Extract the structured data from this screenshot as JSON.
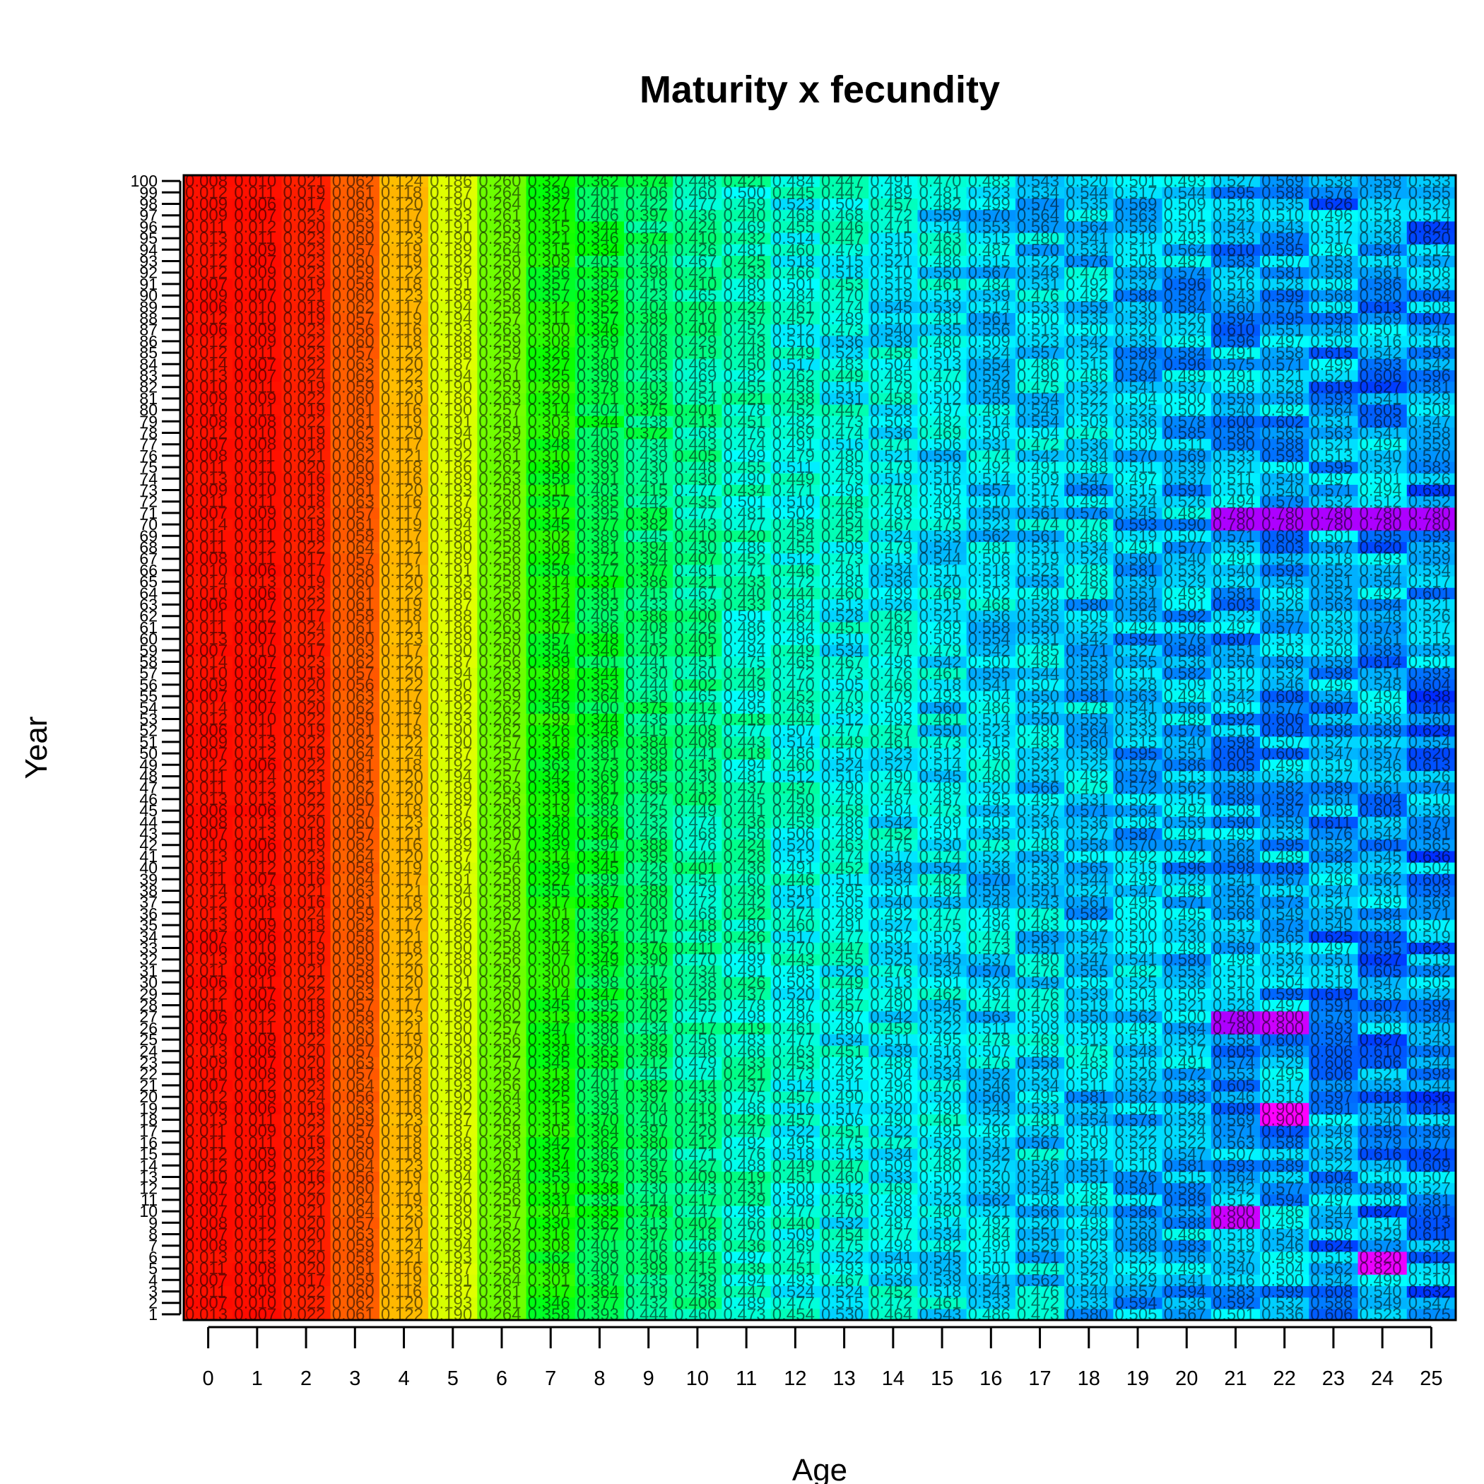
{
  "chart_data": {
    "type": "heatmap",
    "title": "Maturity x fecundity",
    "xlabel": "Age",
    "ylabel": "Year",
    "x_ticks": [
      0,
      1,
      2,
      3,
      4,
      5,
      6,
      7,
      8,
      9,
      10,
      11,
      12,
      13,
      14,
      15,
      16,
      17,
      18,
      19,
      20,
      21,
      22,
      23,
      24,
      25
    ],
    "xlim": [
      -0.5,
      25.5
    ],
    "ylim": [
      0.5,
      100.5
    ],
    "y_range": [
      1,
      100
    ],
    "grid": false,
    "legend": "none",
    "colormap": "rainbow (red = low, through orange, yellow, green, cyan, to blue/magenta = high)",
    "age_mean_levels": [
      0.01,
      0.01,
      0.02,
      0.06,
      0.12,
      0.19,
      0.26,
      0.33,
      0.37,
      0.41,
      0.44,
      0.46,
      0.48,
      0.49,
      0.5,
      0.51,
      0.52,
      0.52,
      0.53,
      0.54,
      0.54,
      0.55,
      0.55,
      0.56,
      0.56,
      0.57
    ],
    "notable_cells": [
      {
        "age": 21,
        "years": [
          70,
          71
        ],
        "level": 0.78
      },
      {
        "age": 22,
        "years": [
          70,
          71
        ],
        "level": 0.78
      },
      {
        "age": 23,
        "years": [
          70,
          71
        ],
        "level": 0.78
      },
      {
        "age": 24,
        "years": [
          70,
          71
        ],
        "level": 0.78
      },
      {
        "age": 25,
        "years": [
          70,
          71
        ],
        "level": 0.78
      },
      {
        "age": 21,
        "years": [
          26,
          27
        ],
        "level": 0.78
      },
      {
        "age": 22,
        "years": [
          26,
          27
        ],
        "level": 0.8
      },
      {
        "age": 22,
        "years": [
          18,
          19
        ],
        "level": 0.9
      },
      {
        "age": 21,
        "years": [
          9,
          10
        ],
        "level": 0.8
      },
      {
        "age": 24,
        "years": [
          5,
          6
        ],
        "level": 0.82
      }
    ]
  }
}
